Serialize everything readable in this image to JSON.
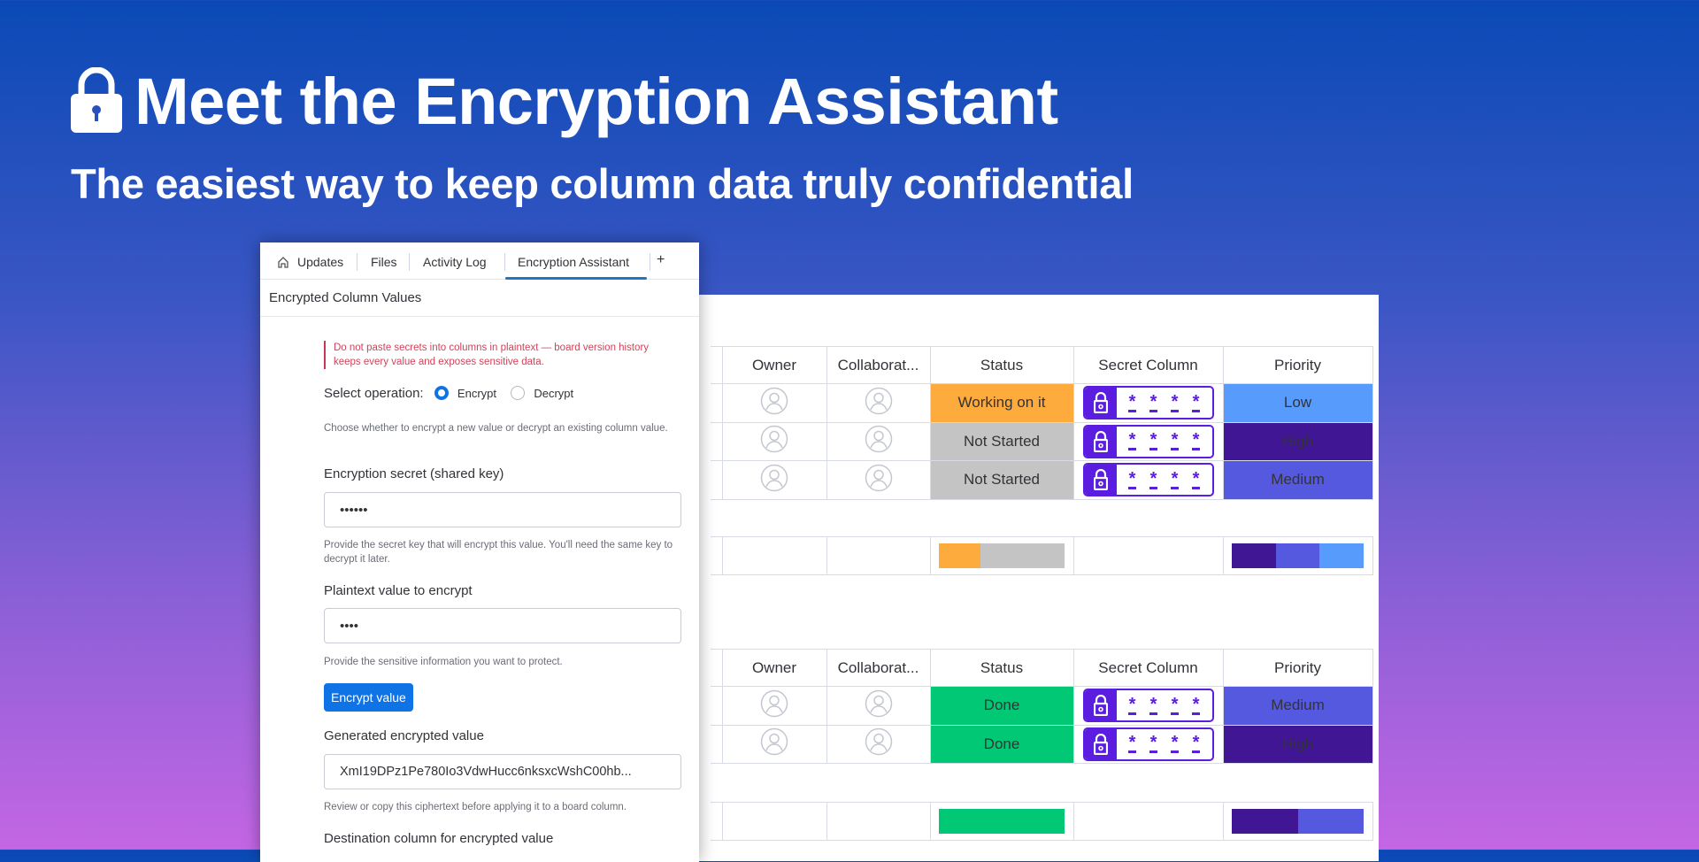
{
  "hero": {
    "title": "Meet the Encryption Assistant",
    "subtitle": "The easiest way to keep column data truly confidential",
    "icon": "lock-icon"
  },
  "panel": {
    "tabs": [
      {
        "label": "Updates",
        "icon": "home-icon"
      },
      {
        "label": "Files"
      },
      {
        "label": "Activity Log"
      },
      {
        "label": "Encryption Assistant",
        "active": true
      }
    ],
    "add_tab": "+",
    "title": "Encrypted Column Values",
    "warning": "Do not paste secrets into columns in plaintext — board version history keeps every value and exposes sensitive data.",
    "operation": {
      "label": "Select operation:",
      "options": [
        "Encrypt",
        "Decrypt"
      ],
      "selected": "Encrypt",
      "help": "Choose whether to encrypt a new value or decrypt an existing column value."
    },
    "secret": {
      "label": "Encryption secret (shared key)",
      "value": "••••••",
      "help": "Provide the secret key that will encrypt this value. You'll need the same key to decrypt it later."
    },
    "plaintext": {
      "label": "Plaintext value to encrypt",
      "value": "••••",
      "help": "Provide the sensitive information you want to protect."
    },
    "encrypt_button": "Encrypt value",
    "generated": {
      "label": "Generated encrypted value",
      "value": "XmI19DPz1Pe780Io3VdwHucc6nksxcWshC00hb...",
      "help": "Review or copy this ciphertext before applying it to a board column."
    },
    "destination": {
      "label": "Destination column for encrypted value"
    }
  },
  "colors": {
    "Working on it": "#fdab3d",
    "Not Started": "#c4c4c4",
    "Done": "#00c875",
    "Low": "#579bfc",
    "Medium": "#5559df",
    "High": "#401694",
    "secret": "#5b1ee0",
    "accent": "#0f73e6"
  },
  "board": {
    "columns": [
      "Owner",
      "Collaborat...",
      "Status",
      "Secret Column",
      "Priority"
    ],
    "secret_mask": [
      "*",
      "*",
      "*",
      "*"
    ],
    "groups": [
      {
        "rows": [
          {
            "status": "Working on it",
            "priority": "Low"
          },
          {
            "status": "Not Started",
            "priority": "High"
          },
          {
            "status": "Not Started",
            "priority": "Medium"
          }
        ],
        "summary": {
          "status": [
            [
              "Working on it",
              1
            ],
            [
              "Not Started",
              2
            ]
          ],
          "priority": [
            [
              "High",
              1
            ],
            [
              "Medium",
              1
            ],
            [
              "Low",
              1
            ]
          ]
        }
      },
      {
        "rows": [
          {
            "status": "Done",
            "priority": "Medium"
          },
          {
            "status": "Done",
            "priority": "High"
          }
        ],
        "summary": {
          "status": [
            [
              "Done",
              2
            ]
          ],
          "priority": [
            [
              "High",
              1
            ],
            [
              "Medium",
              1
            ]
          ]
        }
      }
    ]
  }
}
